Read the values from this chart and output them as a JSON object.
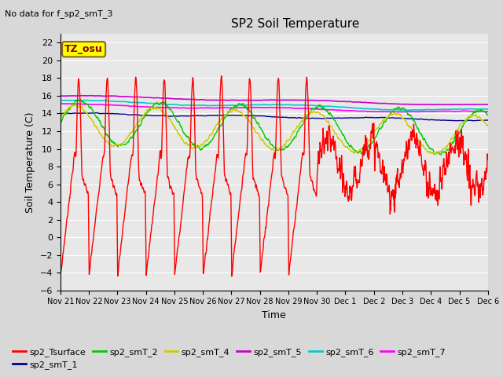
{
  "title": "SP2 Soil Temperature",
  "subtitle": "No data for f_sp2_smT_3",
  "xlabel": "Time",
  "ylabel": "Soil Temperature (C)",
  "annotation": "TZ_osu",
  "ylim": [
    -6,
    23
  ],
  "yticks": [
    -6,
    -4,
    -2,
    0,
    2,
    4,
    6,
    8,
    10,
    12,
    14,
    16,
    18,
    20,
    22
  ],
  "x_labels": [
    "Nov 21",
    "Nov 22",
    "Nov 23",
    "Nov 24",
    "Nov 25",
    "Nov 26",
    "Nov 27",
    "Nov 28",
    "Nov 29",
    "Nov 30",
    "Dec 1",
    "Dec 2",
    "Dec 3",
    "Dec 4",
    "Dec 5",
    "Dec 6"
  ],
  "series_colors": {
    "sp2_Tsurface": "#ff0000",
    "sp2_smT_1": "#00008b",
    "sp2_smT_2": "#00cc00",
    "sp2_smT_4": "#cccc00",
    "sp2_smT_5": "#cc00cc",
    "sp2_smT_6": "#00cccc",
    "sp2_smT_7": "#ff00ff"
  },
  "bg_color": "#d8d8d8",
  "plot_bg": "#e8e8e8",
  "grid_color": "#ffffff"
}
